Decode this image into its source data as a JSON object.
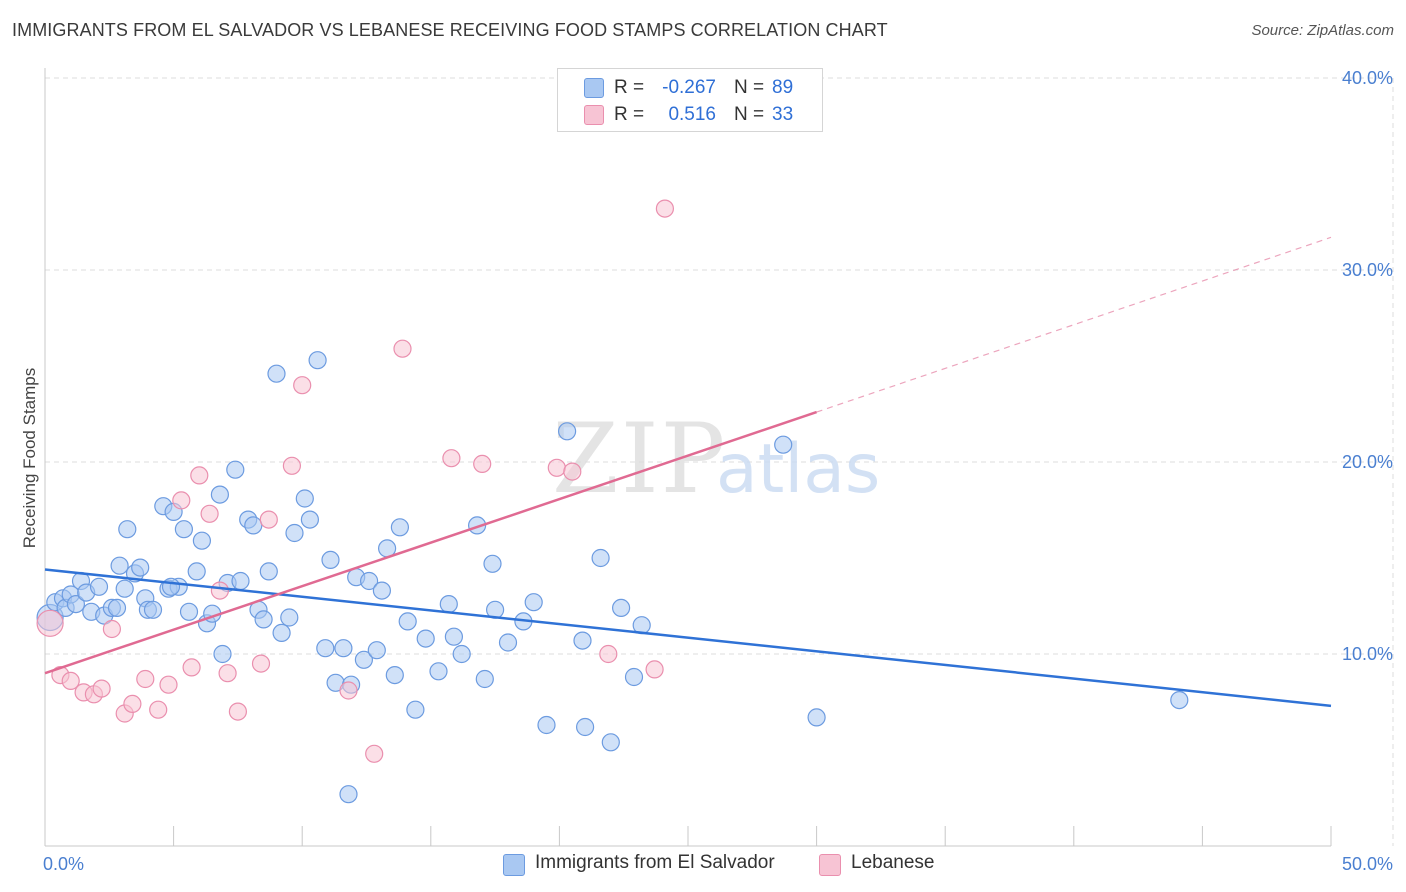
{
  "header": {
    "title": "IMMIGRANTS FROM EL SALVADOR VS LEBANESE RECEIVING FOOD STAMPS CORRELATION CHART",
    "source": "Source: ZipAtlas.com"
  },
  "colors": {
    "blue_fill": "#a9c8f2",
    "blue_stroke": "#6c9be0",
    "blue_line": "#2f72d6",
    "pink_fill": "#f7c4d4",
    "pink_stroke": "#ea8fae",
    "pink_line": "#e06a92",
    "grid": "#dedede",
    "tick_text": "#4a7fd0"
  },
  "legend": {
    "r_label": "R =",
    "n_label": "N =",
    "rows": [
      {
        "series": "blue",
        "r": "-0.267",
        "n": "89"
      },
      {
        "series": "pink",
        "r": "0.516",
        "n": "33"
      }
    ]
  },
  "watermark": {
    "zip": "ZIP",
    "atlas": "atlas"
  },
  "chart_data": {
    "type": "scatter",
    "title": "IMMIGRANTS FROM EL SALVADOR VS LEBANESE RECEIVING FOOD STAMPS CORRELATION CHART",
    "xlabel": "",
    "ylabel": "Receiving Food Stamps",
    "xlim": [
      0,
      50
    ],
    "ylim": [
      0,
      40
    ],
    "x_tick_labels": [
      "0.0%",
      "50.0%"
    ],
    "y_ticks": [
      10,
      20,
      30,
      40
    ],
    "y_tick_labels": [
      "10.0%",
      "20.0%",
      "30.0%",
      "40.0%"
    ],
    "grid": true,
    "legend_position": "top-center",
    "series": [
      {
        "name": "Immigrants from El Salvador",
        "color": "blue",
        "r": -0.267,
        "n": 89,
        "trend": {
          "x0": 0,
          "y0": 14.4,
          "x1": 50,
          "y1": 7.3
        },
        "points": [
          [
            0.2,
            11.9
          ],
          [
            0.4,
            12.7
          ],
          [
            0.7,
            12.9
          ],
          [
            0.8,
            12.4
          ],
          [
            1.0,
            13.1
          ],
          [
            1.2,
            12.6
          ],
          [
            1.4,
            13.8
          ],
          [
            1.6,
            13.2
          ],
          [
            1.8,
            12.2
          ],
          [
            2.1,
            13.5
          ],
          [
            2.3,
            12.0
          ],
          [
            2.6,
            12.4
          ],
          [
            2.8,
            12.4
          ],
          [
            2.9,
            14.6
          ],
          [
            3.1,
            13.4
          ],
          [
            3.2,
            16.5
          ],
          [
            3.5,
            14.2
          ],
          [
            3.7,
            14.5
          ],
          [
            3.9,
            12.9
          ],
          [
            4.0,
            12.3
          ],
          [
            4.2,
            12.3
          ],
          [
            4.6,
            17.7
          ],
          [
            4.8,
            13.4
          ],
          [
            5.0,
            17.4
          ],
          [
            5.2,
            13.5
          ],
          [
            5.4,
            16.5
          ],
          [
            5.6,
            12.2
          ],
          [
            5.9,
            14.3
          ],
          [
            6.1,
            15.9
          ],
          [
            6.3,
            11.6
          ],
          [
            6.5,
            12.1
          ],
          [
            6.8,
            18.3
          ],
          [
            6.9,
            10.0
          ],
          [
            7.1,
            13.7
          ],
          [
            7.4,
            19.6
          ],
          [
            7.6,
            13.8
          ],
          [
            7.9,
            17.0
          ],
          [
            8.1,
            16.7
          ],
          [
            8.3,
            12.3
          ],
          [
            8.5,
            11.8
          ],
          [
            8.7,
            14.3
          ],
          [
            9.0,
            24.6
          ],
          [
            9.2,
            11.1
          ],
          [
            9.5,
            11.9
          ],
          [
            9.7,
            16.3
          ],
          [
            10.1,
            18.1
          ],
          [
            10.3,
            17.0
          ],
          [
            10.6,
            25.3
          ],
          [
            10.9,
            10.3
          ],
          [
            11.1,
            14.9
          ],
          [
            11.3,
            8.5
          ],
          [
            11.6,
            10.3
          ],
          [
            11.9,
            8.4
          ],
          [
            12.1,
            14.0
          ],
          [
            12.4,
            9.7
          ],
          [
            12.6,
            13.8
          ],
          [
            12.9,
            10.2
          ],
          [
            13.1,
            13.3
          ],
          [
            13.3,
            15.5
          ],
          [
            13.6,
            8.9
          ],
          [
            13.8,
            16.6
          ],
          [
            14.1,
            11.7
          ],
          [
            14.4,
            7.1
          ],
          [
            14.8,
            10.8
          ],
          [
            15.3,
            9.1
          ],
          [
            15.7,
            12.6
          ],
          [
            15.9,
            10.9
          ],
          [
            16.2,
            10.0
          ],
          [
            16.8,
            16.7
          ],
          [
            17.1,
            8.7
          ],
          [
            17.4,
            14.7
          ],
          [
            17.5,
            12.3
          ],
          [
            18.0,
            10.6
          ],
          [
            18.6,
            11.7
          ],
          [
            19.0,
            12.7
          ],
          [
            11.8,
            2.7
          ],
          [
            19.5,
            6.3
          ],
          [
            20.3,
            21.6
          ],
          [
            20.9,
            10.7
          ],
          [
            21.0,
            6.2
          ],
          [
            21.6,
            15.0
          ],
          [
            22.0,
            5.4
          ],
          [
            22.4,
            12.4
          ],
          [
            22.9,
            8.8
          ],
          [
            23.2,
            11.5
          ],
          [
            28.7,
            20.9
          ],
          [
            30.0,
            6.7
          ],
          [
            44.1,
            7.6
          ],
          [
            4.9,
            13.5
          ]
        ]
      },
      {
        "name": "Lebanese",
        "color": "pink",
        "r": 0.516,
        "n": 33,
        "trend": {
          "x0": 0,
          "y0": 9.0,
          "x1": 30.0,
          "y1": 22.6,
          "dash_x1": 50,
          "dash_y1": 31.7
        },
        "points": [
          [
            0.2,
            11.6
          ],
          [
            0.6,
            8.9
          ],
          [
            1.0,
            8.6
          ],
          [
            1.5,
            8.0
          ],
          [
            1.9,
            7.9
          ],
          [
            2.2,
            8.2
          ],
          [
            2.6,
            11.3
          ],
          [
            3.1,
            6.9
          ],
          [
            3.4,
            7.4
          ],
          [
            3.9,
            8.7
          ],
          [
            4.4,
            7.1
          ],
          [
            4.8,
            8.4
          ],
          [
            5.3,
            18.0
          ],
          [
            5.7,
            9.3
          ],
          [
            6.0,
            19.3
          ],
          [
            6.4,
            17.3
          ],
          [
            6.8,
            13.3
          ],
          [
            7.1,
            9.0
          ],
          [
            7.5,
            7.0
          ],
          [
            8.4,
            9.5
          ],
          [
            8.7,
            17.0
          ],
          [
            9.6,
            19.8
          ],
          [
            10.0,
            24.0
          ],
          [
            11.8,
            8.1
          ],
          [
            12.8,
            4.8
          ],
          [
            13.9,
            25.9
          ],
          [
            15.8,
            20.2
          ],
          [
            17.0,
            19.9
          ],
          [
            19.9,
            19.7
          ],
          [
            20.5,
            19.5
          ],
          [
            21.9,
            10.0
          ],
          [
            23.7,
            9.2
          ],
          [
            24.1,
            33.2
          ]
        ]
      }
    ]
  },
  "bottom_legend": [
    {
      "label": "Immigrants from El Salvador",
      "series": "blue"
    },
    {
      "label": "Lebanese",
      "series": "pink"
    }
  ]
}
